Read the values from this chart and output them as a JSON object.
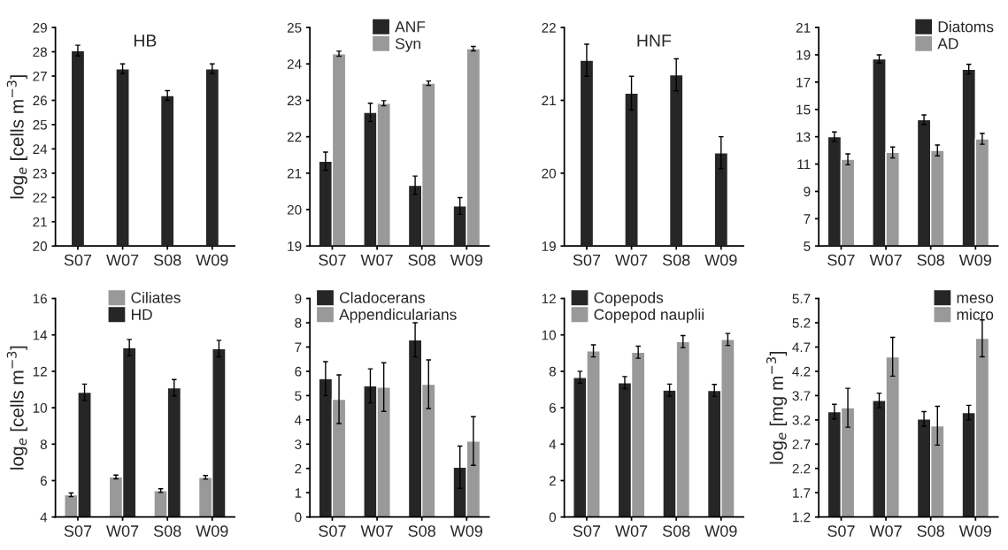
{
  "chart_data": [
    {
      "type": "bar",
      "title": "HB",
      "ylabel": "log$_{e}$ [cells m$^{−3}$]",
      "categories": [
        "S07",
        "W07",
        "S08",
        "W09"
      ],
      "ylim": [
        20,
        29
      ],
      "yticks": [
        20,
        21,
        22,
        23,
        24,
        25,
        26,
        27,
        28,
        29
      ],
      "grid": false,
      "legend": false,
      "series": [
        {
          "color": "#262626",
          "values": [
            28.05,
            27.3,
            26.2,
            27.3
          ],
          "errors": [
            0.22,
            0.2,
            0.2,
            0.2
          ]
        }
      ]
    },
    {
      "type": "bar",
      "categories": [
        "S07",
        "W07",
        "S08",
        "W09"
      ],
      "ylim": [
        19,
        25
      ],
      "yticks": [
        19,
        20,
        21,
        22,
        23,
        24,
        25
      ],
      "grid": false,
      "legend": "top",
      "series": [
        {
          "name": "ANF",
          "color": "#262626",
          "values": [
            21.33,
            22.67,
            20.67,
            20.1
          ],
          "errors": [
            0.25,
            0.25,
            0.25,
            0.23
          ]
        },
        {
          "name": "Syn",
          "color": "#999999",
          "values": [
            24.28,
            22.92,
            23.47,
            24.42
          ],
          "errors": [
            0.07,
            0.07,
            0.06,
            0.06
          ]
        }
      ]
    },
    {
      "type": "bar",
      "title": "HNF",
      "categories": [
        "S07",
        "W07",
        "S08",
        "W09"
      ],
      "ylim": [
        19,
        22
      ],
      "yticks": [
        19,
        20,
        21,
        22
      ],
      "grid": false,
      "legend": false,
      "series": [
        {
          "color": "#262626",
          "values": [
            21.55,
            21.1,
            21.35,
            20.28
          ],
          "errors": [
            0.22,
            0.23,
            0.22,
            0.22
          ]
        }
      ]
    },
    {
      "type": "bar",
      "categories": [
        "S07",
        "W07",
        "S08",
        "W09"
      ],
      "ylim": [
        5,
        21
      ],
      "yticks": [
        5,
        7,
        9,
        11,
        13,
        15,
        17,
        19,
        21
      ],
      "grid": false,
      "legend": "top right",
      "series": [
        {
          "name": "Diatoms",
          "color": "#262626",
          "values": [
            13.0,
            18.7,
            14.25,
            17.95
          ],
          "errors": [
            0.35,
            0.3,
            0.35,
            0.35
          ]
        },
        {
          "name": "AD",
          "color": "#999999",
          "values": [
            11.35,
            11.85,
            12.0,
            12.85
          ],
          "errors": [
            0.4,
            0.4,
            0.4,
            0.4
          ]
        }
      ]
    },
    {
      "type": "bar",
      "ylabel": "log$_{e}$ [cells m$^{−3}$]",
      "categories": [
        "S07",
        "W07",
        "S08",
        "W09"
      ],
      "ylim": [
        4,
        16
      ],
      "yticks": [
        4,
        6,
        8,
        10,
        12,
        14,
        16
      ],
      "grid": false,
      "legend": "top",
      "series": [
        {
          "name": "Ciliates",
          "color": "#999999",
          "values": [
            5.22,
            6.2,
            5.45,
            6.18
          ],
          "errors": [
            0.1,
            0.1,
            0.1,
            0.1
          ]
        },
        {
          "name": "HD",
          "color": "#262626",
          "values": [
            10.85,
            13.3,
            11.1,
            13.25
          ],
          "errors": [
            0.45,
            0.45,
            0.45,
            0.45
          ]
        }
      ]
    },
    {
      "type": "bar",
      "categories": [
        "S07",
        "W07",
        "S08",
        "W09"
      ],
      "ylim": [
        0,
        9
      ],
      "yticks": [
        0,
        1,
        2,
        3,
        4,
        5,
        6,
        7,
        8,
        9
      ],
      "grid": false,
      "legend": "top left",
      "series": [
        {
          "name": "Cladocerans",
          "color": "#262626",
          "values": [
            5.7,
            5.4,
            7.3,
            2.05
          ],
          "errors": [
            0.7,
            0.7,
            0.7,
            0.87
          ]
        },
        {
          "name": "Appendicularians",
          "color": "#999999",
          "values": [
            4.85,
            5.35,
            5.47,
            3.13
          ],
          "errors": [
            1.0,
            1.0,
            1.0,
            1.0
          ]
        }
      ]
    },
    {
      "type": "bar",
      "categories": [
        "S07",
        "W07",
        "S08",
        "W09"
      ],
      "ylim": [
        0,
        12
      ],
      "yticks": [
        0,
        2,
        4,
        6,
        8,
        10,
        12
      ],
      "grid": false,
      "legend": "top left",
      "series": [
        {
          "name": "Copepods",
          "color": "#262626",
          "values": [
            7.67,
            7.38,
            6.97,
            6.95
          ],
          "errors": [
            0.33,
            0.33,
            0.33,
            0.33
          ]
        },
        {
          "name": "Copepod nauplii",
          "color": "#999999",
          "values": [
            9.12,
            9.05,
            9.63,
            9.75
          ],
          "errors": [
            0.33,
            0.33,
            0.33,
            0.33
          ]
        }
      ]
    },
    {
      "type": "bar",
      "ylabel": "log$_{e}$ [mg m$^{−3}$]",
      "categories": [
        "S07",
        "W07",
        "S08",
        "W09"
      ],
      "ylim": [
        1.2,
        5.7
      ],
      "yticks": [
        1.2,
        1.7,
        2.2,
        2.7,
        3.2,
        3.7,
        4.2,
        4.7,
        5.2,
        5.7
      ],
      "grid": false,
      "legend": "top right",
      "series": [
        {
          "name": "meso",
          "color": "#262626",
          "values": [
            3.37,
            3.6,
            3.22,
            3.35
          ],
          "errors": [
            0.15,
            0.15,
            0.15,
            0.15
          ]
        },
        {
          "name": "micro",
          "color": "#999999",
          "values": [
            3.45,
            4.5,
            3.08,
            4.88
          ],
          "errors": [
            0.4,
            0.4,
            0.4,
            0.38
          ]
        }
      ]
    }
  ]
}
